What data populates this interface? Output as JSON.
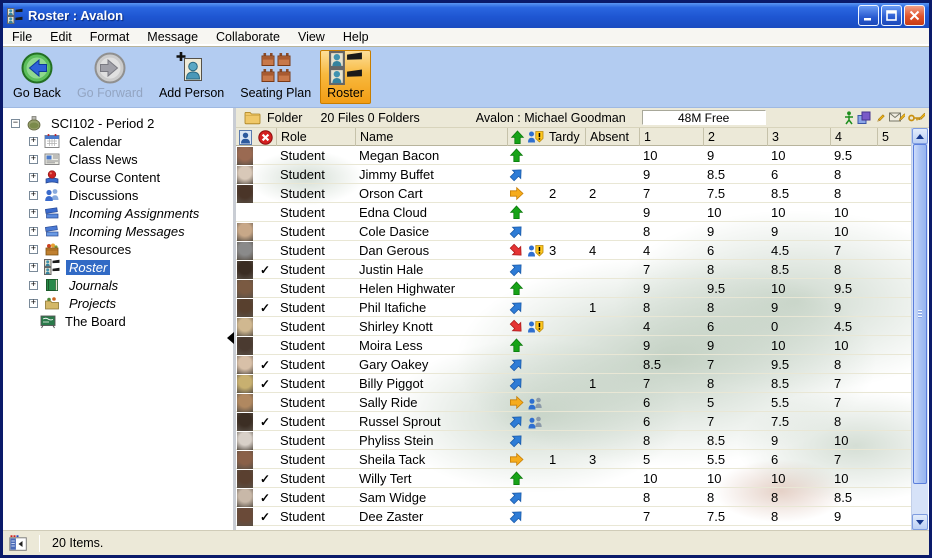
{
  "window": {
    "title": "Roster : Avalon"
  },
  "menu": {
    "items": [
      "File",
      "Edit",
      "Format",
      "Message",
      "Collaborate",
      "View",
      "Help"
    ]
  },
  "toolbar": {
    "buttons": [
      {
        "id": "go-back",
        "label": "Go Back",
        "icon": "back-icon",
        "disabled": false,
        "active": false
      },
      {
        "id": "go-forward",
        "label": "Go Forward",
        "icon": "forward-icon",
        "disabled": true,
        "active": false
      },
      {
        "id": "add-person",
        "label": "Add Person",
        "icon": "add-person-icon",
        "disabled": false,
        "active": false
      },
      {
        "id": "seating-plan",
        "label": "Seating Plan",
        "icon": "seating-plan-icon",
        "disabled": false,
        "active": false
      },
      {
        "id": "roster",
        "label": "Roster",
        "icon": "roster-icon",
        "disabled": false,
        "active": true
      }
    ]
  },
  "sidebar": {
    "root": {
      "label": "SCI102 - Period 2",
      "icon": "flask-icon",
      "expanded": true
    },
    "items": [
      {
        "label": "Calendar",
        "icon": "calendar-icon",
        "italic": false,
        "expandable": true,
        "selected": false
      },
      {
        "label": "Class News",
        "icon": "news-icon",
        "italic": false,
        "expandable": true,
        "selected": false
      },
      {
        "label": "Course Content",
        "icon": "course-content-icon",
        "italic": false,
        "expandable": true,
        "selected": false
      },
      {
        "label": "Discussions",
        "icon": "discussions-icon",
        "italic": false,
        "expandable": true,
        "selected": false
      },
      {
        "label": "Incoming Assignments",
        "icon": "assignments-icon",
        "italic": true,
        "expandable": true,
        "selected": false
      },
      {
        "label": "Incoming Messages",
        "icon": "messages-icon",
        "italic": true,
        "expandable": true,
        "selected": false
      },
      {
        "label": "Resources",
        "icon": "resources-icon",
        "italic": false,
        "expandable": true,
        "selected": false
      },
      {
        "label": "Roster",
        "icon": "roster-tree-icon",
        "italic": true,
        "expandable": true,
        "selected": true
      },
      {
        "label": "Journals",
        "icon": "journals-icon",
        "italic": true,
        "expandable": true,
        "selected": false
      },
      {
        "label": "Projects",
        "icon": "projects-icon",
        "italic": true,
        "expandable": true,
        "selected": false
      },
      {
        "label": "The Board",
        "icon": "board-icon",
        "italic": false,
        "expandable": false,
        "selected": false
      }
    ]
  },
  "infobar": {
    "folder_label": "Folder",
    "counts": "20 Files 0 Folders",
    "owner": "Avalon : Michael Goodman",
    "free_space": "48M Free"
  },
  "table": {
    "columns": {
      "role": "Role",
      "name": "Name",
      "tardy": "Tardy",
      "absent": "Absent",
      "grades": [
        "1",
        "2",
        "3",
        "4",
        "5"
      ]
    },
    "rows": [
      {
        "role": "Student",
        "name": "Megan Bacon",
        "checked": false,
        "trend": "up",
        "badge": "",
        "tardy": "",
        "absent": "",
        "grades": [
          "10",
          "9",
          "10",
          "9.5",
          ""
        ],
        "avatar": true
      },
      {
        "role": "Student",
        "name": "Jimmy Buffet",
        "checked": false,
        "trend": "rise",
        "badge": "",
        "tardy": "",
        "absent": "",
        "grades": [
          "9",
          "8.5",
          "6",
          "8",
          ""
        ],
        "avatar": true
      },
      {
        "role": "Student",
        "name": "Orson Cart",
        "checked": false,
        "trend": "flat",
        "badge": "",
        "tardy": "2",
        "absent": "2",
        "grades": [
          "7",
          "7.5",
          "8.5",
          "8",
          ""
        ],
        "avatar": true
      },
      {
        "role": "Student",
        "name": "Edna Cloud",
        "checked": false,
        "trend": "up",
        "badge": "",
        "tardy": "",
        "absent": "",
        "grades": [
          "9",
          "10",
          "10",
          "10",
          ""
        ],
        "avatar": false
      },
      {
        "role": "Student",
        "name": "Cole Dasice",
        "checked": false,
        "trend": "rise",
        "badge": "",
        "tardy": "",
        "absent": "",
        "grades": [
          "8",
          "9",
          "9",
          "10",
          ""
        ],
        "avatar": true
      },
      {
        "role": "Student",
        "name": "Dan Gerous",
        "checked": false,
        "trend": "down",
        "badge": "alert",
        "tardy": "3",
        "absent": "4",
        "grades": [
          "4",
          "6",
          "4.5",
          "7",
          ""
        ],
        "avatar": true
      },
      {
        "role": "Student",
        "name": "Justin Hale",
        "checked": true,
        "trend": "rise",
        "badge": "",
        "tardy": "",
        "absent": "",
        "grades": [
          "7",
          "8",
          "8.5",
          "8",
          ""
        ],
        "avatar": true
      },
      {
        "role": "Student",
        "name": "Helen Highwater",
        "checked": false,
        "trend": "up",
        "badge": "",
        "tardy": "",
        "absent": "",
        "grades": [
          "9",
          "9.5",
          "10",
          "9.5",
          ""
        ],
        "avatar": true
      },
      {
        "role": "Student",
        "name": "Phil Itafiche",
        "checked": true,
        "trend": "rise",
        "badge": "",
        "tardy": "",
        "absent": "1",
        "grades": [
          "8",
          "8",
          "9",
          "9",
          ""
        ],
        "avatar": true
      },
      {
        "role": "Student",
        "name": "Shirley Knott",
        "checked": false,
        "trend": "down",
        "badge": "alert",
        "tardy": "",
        "absent": "",
        "grades": [
          "4",
          "6",
          "0",
          "4.5",
          ""
        ],
        "avatar": true
      },
      {
        "role": "Student",
        "name": "Moira Less",
        "checked": false,
        "trend": "up",
        "badge": "",
        "tardy": "",
        "absent": "",
        "grades": [
          "9",
          "9",
          "10",
          "10",
          ""
        ],
        "avatar": true
      },
      {
        "role": "Student",
        "name": "Gary Oakey",
        "checked": true,
        "trend": "rise",
        "badge": "",
        "tardy": "",
        "absent": "",
        "grades": [
          "8.5",
          "7",
          "9.5",
          "8",
          ""
        ],
        "avatar": true
      },
      {
        "role": "Student",
        "name": "Billy Piggot",
        "checked": true,
        "trend": "rise",
        "badge": "",
        "tardy": "",
        "absent": "1",
        "grades": [
          "7",
          "8",
          "8.5",
          "7",
          ""
        ],
        "avatar": true
      },
      {
        "role": "Student",
        "name": "Sally Ride",
        "checked": false,
        "trend": "flat",
        "badge": "group",
        "tardy": "",
        "absent": "",
        "grades": [
          "6",
          "5",
          "5.5",
          "7",
          ""
        ],
        "avatar": true
      },
      {
        "role": "Student",
        "name": "Russel Sprout",
        "checked": true,
        "trend": "rise",
        "badge": "group",
        "tardy": "",
        "absent": "",
        "grades": [
          "6",
          "7",
          "7.5",
          "8",
          ""
        ],
        "avatar": true
      },
      {
        "role": "Student",
        "name": "Phyliss Stein",
        "checked": false,
        "trend": "rise",
        "badge": "",
        "tardy": "",
        "absent": "",
        "grades": [
          "8",
          "8.5",
          "9",
          "10",
          ""
        ],
        "avatar": true
      },
      {
        "role": "Student",
        "name": "Sheila Tack",
        "checked": false,
        "trend": "flat",
        "badge": "",
        "tardy": "1",
        "absent": "3",
        "grades": [
          "5",
          "5.5",
          "6",
          "7",
          ""
        ],
        "avatar": true
      },
      {
        "role": "Student",
        "name": "Willy Tert",
        "checked": true,
        "trend": "up",
        "badge": "",
        "tardy": "",
        "absent": "",
        "grades": [
          "10",
          "10",
          "10",
          "10",
          ""
        ],
        "avatar": true
      },
      {
        "role": "Student",
        "name": "Sam Widge",
        "checked": true,
        "trend": "rise",
        "badge": "",
        "tardy": "",
        "absent": "",
        "grades": [
          "8",
          "8",
          "8",
          "8.5",
          ""
        ],
        "avatar": true
      },
      {
        "role": "Student",
        "name": "Dee Zaster",
        "checked": true,
        "trend": "rise",
        "badge": "",
        "tardy": "",
        "absent": "",
        "grades": [
          "7",
          "7.5",
          "8",
          "9",
          ""
        ],
        "avatar": true
      }
    ]
  },
  "statusbar": {
    "text": "20 Items."
  },
  "colors": {
    "trend_up": "#17a317",
    "trend_rise": "#2e7cd6",
    "trend_flat": "#f6ac1c",
    "trend_down": "#e53434",
    "selection": "#316ac5",
    "active_button": "#f8b93e",
    "titlebar": "#1e56d2",
    "toolbar_bg": "#b3ccf1"
  }
}
